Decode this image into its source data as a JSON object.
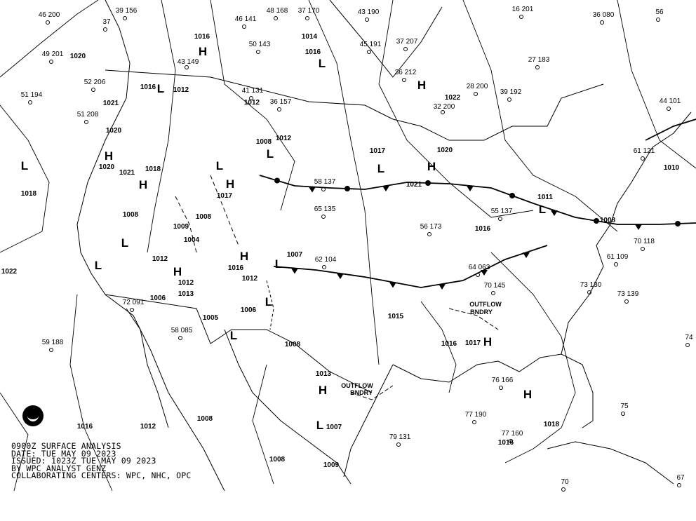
{
  "caption": {
    "line1": "0900Z SURFACE ANALYSIS",
    "line2": "DATE: TUE MAY 09 2023",
    "line3": "ISSUED: 1023Z TUE MAY 09 2023",
    "line4": "BY WPC ANALYST GENZ",
    "line5": "COLLABORATING CENTERS: WPC, NHC, OPC"
  },
  "logo": "NOAA",
  "pressure_centers": [
    "H",
    "L",
    "H",
    "L",
    "L",
    "H",
    "H",
    "L",
    "L",
    "L",
    "H",
    "L",
    "L",
    "H",
    "H",
    "L",
    "L",
    "L",
    "H",
    "H",
    "H",
    "L",
    "L",
    "H"
  ],
  "isobar_labels": [
    "1020",
    "1016",
    "1012",
    "1021",
    "1020",
    "1020",
    "1021",
    "1018",
    "1018",
    "1022",
    "1008",
    "1008",
    "1009",
    "1004",
    "1012",
    "1012",
    "1013",
    "1006",
    "1016",
    "1012",
    "1008",
    "1008",
    "1009",
    "1007",
    "1013",
    "1008",
    "1005",
    "1006",
    "1012",
    "1016",
    "1007",
    "1016",
    "1014",
    "1016",
    "1012",
    "1008",
    "1012",
    "1017",
    "1017",
    "1021",
    "1022",
    "1020",
    "1016",
    "1011",
    "1008",
    "1010",
    "1016",
    "1017",
    "1015",
    "1018",
    "1016"
  ],
  "annotations": [
    "OUTFLOW",
    "BNDRY",
    "OUTFLOW",
    "BNDRY"
  ],
  "station_values": [
    "46 200",
    "49 201",
    "51 194",
    "52 206",
    "51 208",
    "39 156",
    "37",
    "46 141",
    "48 168",
    "37 170",
    "43 190",
    "16 201",
    "36 080",
    "56",
    "43 149",
    "50 143",
    "41 131",
    "36 157",
    "45 191",
    "37 207",
    "36 212",
    "32 200",
    "28 200",
    "39 192",
    "27 183",
    "44 101",
    "61 121",
    "70 118",
    "73 139",
    "59 188",
    "58 085",
    "72 091",
    "55 137",
    "56 173",
    "58 137",
    "65 135",
    "62 104",
    "64 063",
    "70 145",
    "76 166",
    "77 190",
    "77 160",
    "79 131",
    "61 109",
    "73 130",
    "74",
    "75",
    "70",
    "67"
  ],
  "colors": {
    "background": "#ffffff",
    "lines": "#000000"
  }
}
